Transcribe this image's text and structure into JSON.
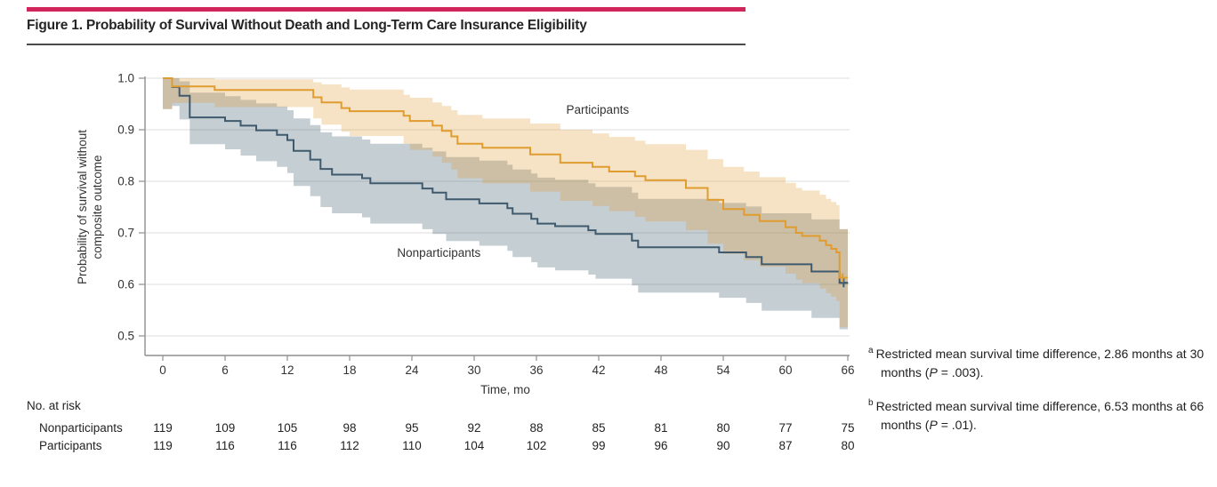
{
  "title": "Figure 1. Probability of Survival Without Death and Long-Term Care Insurance Eligibility",
  "colors": {
    "accent_bar": "#D0265C",
    "title_rule": "#4A4A4A",
    "axis": "#8F8F8F",
    "grid": "#E4E4E4",
    "text": "#222222",
    "participants_line": "#E09C2E",
    "participants_band": "rgba(222,155,48,0.28)",
    "nonparticipants_line": "#3F5A6D",
    "nonparticipants_band": "rgba(62,92,110,0.30)"
  },
  "chart_data": {
    "type": "line",
    "subtype": "kaplan-meier-step-with-confidence-bands",
    "xlabel": "Time, mo",
    "ylabel_lines": [
      "Probability of survival without",
      "composite outcome"
    ],
    "xmax": 66,
    "ymin": 0.5,
    "xlim": [
      0,
      66
    ],
    "ylim": [
      0.5,
      1.0
    ],
    "grid": "horizontal",
    "xticks": [
      0,
      6,
      12,
      18,
      24,
      30,
      36,
      42,
      48,
      54,
      60,
      66
    ],
    "xtick_labels": [
      "0",
      "6",
      "12",
      "18",
      "24",
      "30",
      "36",
      "42",
      "48",
      "54",
      "60",
      "66"
    ],
    "yticks": [
      1.0,
      0.9,
      0.8,
      0.7,
      0.6,
      0.5
    ],
    "ytick_labels": [
      "1.0",
      "0.9",
      "0.8",
      "0.7",
      "0.6",
      "0.5"
    ],
    "series": [
      {
        "name": "Nonparticipants",
        "label_at": [
          26.6,
          0.66
        ],
        "steps": [
          [
            0,
            1
          ],
          [
            0.9,
            0.983
          ],
          [
            1.6,
            0.966
          ],
          [
            2.6,
            0.924
          ],
          [
            6,
            0.917
          ],
          [
            7.5,
            0.908
          ],
          [
            9,
            0.899
          ],
          [
            11,
            0.89
          ],
          [
            12,
            0.88
          ],
          [
            12.6,
            0.859
          ],
          [
            14.2,
            0.842
          ],
          [
            15.2,
            0.824
          ],
          [
            16.3,
            0.813
          ],
          [
            19.2,
            0.806
          ],
          [
            20,
            0.796
          ],
          [
            25,
            0.786
          ],
          [
            26,
            0.778
          ],
          [
            27.3,
            0.765
          ],
          [
            30.5,
            0.757
          ],
          [
            33.2,
            0.748
          ],
          [
            33.7,
            0.737
          ],
          [
            35.5,
            0.727
          ],
          [
            36.1,
            0.718
          ],
          [
            37.8,
            0.713
          ],
          [
            41,
            0.705
          ],
          [
            41.7,
            0.698
          ],
          [
            45.2,
            0.685
          ],
          [
            45.8,
            0.672
          ],
          [
            53.6,
            0.662
          ],
          [
            56.2,
            0.653
          ],
          [
            57.7,
            0.639
          ],
          [
            62.5,
            0.625
          ],
          [
            65.2,
            0.603
          ],
          [
            66,
            0.603
          ]
        ],
        "ci": [
          [
            0,
            0.94,
            1
          ],
          [
            0.9,
            0.946,
            1
          ],
          [
            1.6,
            0.92,
            0.994
          ],
          [
            2.6,
            0.872,
            0.972
          ],
          [
            6,
            0.862,
            0.965
          ],
          [
            7.5,
            0.85,
            0.958
          ],
          [
            9,
            0.839,
            0.951
          ],
          [
            11,
            0.828,
            0.945
          ],
          [
            12,
            0.816,
            0.938
          ],
          [
            12.6,
            0.791,
            0.922
          ],
          [
            14.2,
            0.771,
            0.909
          ],
          [
            15.2,
            0.75,
            0.895
          ],
          [
            16.3,
            0.738,
            0.887
          ],
          [
            19.2,
            0.73,
            0.881
          ],
          [
            20,
            0.718,
            0.873
          ],
          [
            25,
            0.707,
            0.865
          ],
          [
            26,
            0.698,
            0.858
          ],
          [
            27.3,
            0.684,
            0.847
          ],
          [
            30.5,
            0.675,
            0.84
          ],
          [
            33.2,
            0.665,
            0.832
          ],
          [
            33.7,
            0.653,
            0.823
          ],
          [
            35.5,
            0.643,
            0.815
          ],
          [
            36.1,
            0.633,
            0.807
          ],
          [
            37.8,
            0.627,
            0.803
          ],
          [
            41,
            0.619,
            0.796
          ],
          [
            41.7,
            0.611,
            0.789
          ],
          [
            45.2,
            0.598,
            0.778
          ],
          [
            45.8,
            0.584,
            0.766
          ],
          [
            53.6,
            0.574,
            0.758
          ],
          [
            56.2,
            0.564,
            0.751
          ],
          [
            57.7,
            0.549,
            0.738
          ],
          [
            62.5,
            0.535,
            0.726
          ],
          [
            65.2,
            0.513,
            0.707
          ],
          [
            66,
            0.513,
            0.707
          ]
        ],
        "censors": [
          [
            65.6,
            0.603
          ]
        ]
      },
      {
        "name": "Participants",
        "label_at": [
          41.9,
          0.938
        ],
        "steps": [
          [
            0,
            1
          ],
          [
            0.9,
            0.984
          ],
          [
            5,
            0.977
          ],
          [
            14.5,
            0.963
          ],
          [
            15.3,
            0.953
          ],
          [
            17.2,
            0.942
          ],
          [
            18,
            0.936
          ],
          [
            23.2,
            0.927
          ],
          [
            23.8,
            0.917
          ],
          [
            26,
            0.908
          ],
          [
            26.9,
            0.898
          ],
          [
            27.8,
            0.887
          ],
          [
            28.4,
            0.873
          ],
          [
            30.8,
            0.865
          ],
          [
            35.4,
            0.852
          ],
          [
            38.3,
            0.836
          ],
          [
            41.4,
            0.828
          ],
          [
            43,
            0.819
          ],
          [
            45.5,
            0.81
          ],
          [
            46.5,
            0.802
          ],
          [
            50.4,
            0.787
          ],
          [
            52.5,
            0.764
          ],
          [
            54,
            0.746
          ],
          [
            56,
            0.735
          ],
          [
            57.5,
            0.723
          ],
          [
            60,
            0.711
          ],
          [
            61,
            0.7
          ],
          [
            61.6,
            0.694
          ],
          [
            63.3,
            0.685
          ],
          [
            63.9,
            0.676
          ],
          [
            64.4,
            0.669
          ],
          [
            64.9,
            0.662
          ],
          [
            65.2,
            0.613
          ],
          [
            66,
            0.613
          ]
        ],
        "ci": [
          [
            0,
            0.94,
            1
          ],
          [
            0.9,
            0.952,
            1
          ],
          [
            5,
            0.944,
            0.998
          ],
          [
            14.5,
            0.922,
            0.992
          ],
          [
            15.3,
            0.91,
            0.988
          ],
          [
            17.2,
            0.896,
            0.982
          ],
          [
            18,
            0.888,
            0.978
          ],
          [
            23.2,
            0.873,
            0.968
          ],
          [
            23.8,
            0.861,
            0.962
          ],
          [
            26,
            0.848,
            0.953
          ],
          [
            26.9,
            0.836,
            0.946
          ],
          [
            27.8,
            0.823,
            0.938
          ],
          [
            28.4,
            0.806,
            0.929
          ],
          [
            30.8,
            0.796,
            0.922
          ],
          [
            35.4,
            0.78,
            0.912
          ],
          [
            38.3,
            0.762,
            0.9
          ],
          [
            41.4,
            0.752,
            0.893
          ],
          [
            43,
            0.742,
            0.886
          ],
          [
            45.5,
            0.731,
            0.879
          ],
          [
            46.5,
            0.722,
            0.872
          ],
          [
            50.4,
            0.705,
            0.861
          ],
          [
            52.5,
            0.679,
            0.843
          ],
          [
            54,
            0.659,
            0.828
          ],
          [
            56,
            0.647,
            0.819
          ],
          [
            57.5,
            0.634,
            0.808
          ],
          [
            60,
            0.621,
            0.797
          ],
          [
            61,
            0.609,
            0.787
          ],
          [
            61.6,
            0.602,
            0.782
          ],
          [
            63.3,
            0.592,
            0.774
          ],
          [
            63.9,
            0.583,
            0.766
          ],
          [
            64.4,
            0.576,
            0.76
          ],
          [
            64.9,
            0.568,
            0.754
          ],
          [
            65.2,
            0.517,
            0.707
          ],
          [
            66,
            0.517,
            0.707
          ]
        ],
        "censors": [
          [
            65.5,
            0.613
          ]
        ]
      }
    ]
  },
  "risk_table": {
    "header": "No. at risk",
    "rows": [
      {
        "label": "Nonparticipants",
        "values": [
          119,
          109,
          105,
          98,
          95,
          92,
          88,
          85,
          81,
          80,
          77,
          75
        ]
      },
      {
        "label": "Participants",
        "values": [
          119,
          116,
          116,
          112,
          110,
          104,
          102,
          99,
          96,
          90,
          87,
          80
        ]
      }
    ]
  },
  "footnotes": [
    {
      "marker": "a",
      "pre": "Restricted mean survival time difference, 2.86 months at 30 months (",
      "italic": "P",
      "post": " = .003)."
    },
    {
      "marker": "b",
      "pre": "Restricted mean survival time difference, 6.53 months at 66 months (",
      "italic": "P",
      "post": " = .01)."
    }
  ]
}
